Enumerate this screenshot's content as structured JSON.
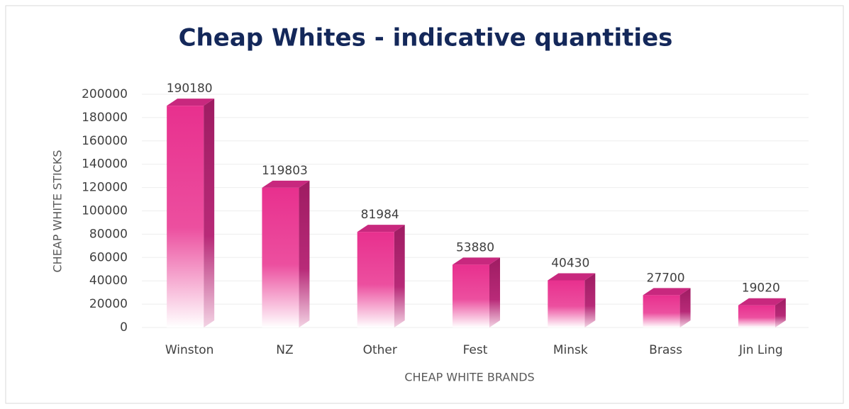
{
  "chart_data": {
    "type": "bar",
    "title": "Cheap Whites - indicative quantities",
    "x_label": "CHEAP WHITE BRANDS",
    "y_label": "CHEAP WHITE STICKS",
    "categories": [
      "Winston",
      "NZ",
      "Other",
      "Fest",
      "Minsk",
      "Brass",
      "Jin Ling"
    ],
    "values": [
      190180,
      119803,
      81984,
      53880,
      40430,
      27700,
      19020
    ],
    "color": "#e8308e",
    "ylim": [
      0,
      200000
    ],
    "yticks": [
      0,
      20000,
      40000,
      60000,
      80000,
      100000,
      120000,
      140000,
      160000,
      180000,
      200000
    ],
    "grid": true
  }
}
